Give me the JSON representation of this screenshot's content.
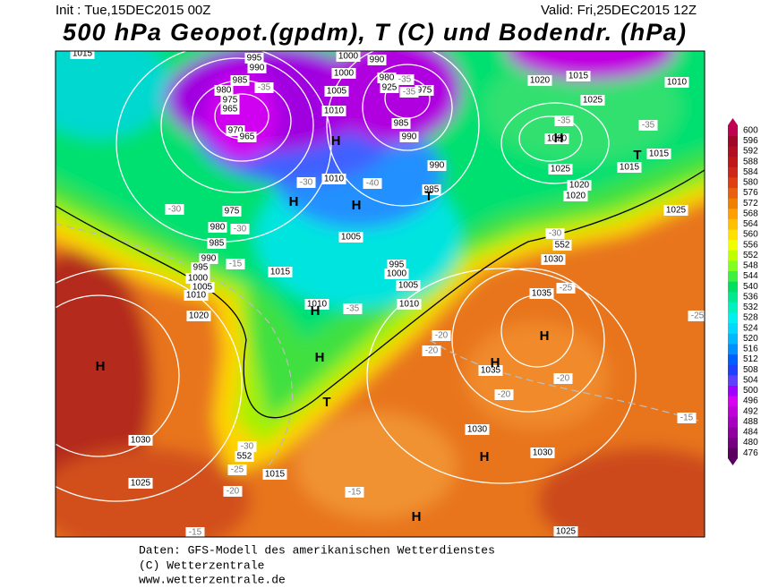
{
  "header": {
    "init": "Init : Tue,15DEC2015 00Z",
    "valid": "Valid: Fri,25DEC2015 12Z",
    "title": "500 hPa Geopot.(gpdm), T (C) und Bodendr. (hPa)"
  },
  "footer": {
    "source": "Daten: GFS-Modell des amerikanischen Wetterdienstes",
    "copyright": "(C) Wetterzentrale",
    "url": "www.wetterzentrale.de"
  },
  "colorbar": {
    "levels": [
      476,
      480,
      484,
      488,
      492,
      496,
      500,
      504,
      508,
      512,
      516,
      520,
      524,
      528,
      532,
      536,
      540,
      544,
      548,
      552,
      556,
      560,
      564,
      568,
      572,
      576,
      580,
      584,
      588,
      592,
      596,
      600
    ],
    "colors": [
      "#5a0060",
      "#780080",
      "#9000a0",
      "#a800c0",
      "#c000d8",
      "#d800f0",
      "#a000ff",
      "#6040ff",
      "#2040ff",
      "#0060ff",
      "#0090ff",
      "#00b8ff",
      "#00d8ff",
      "#00f0f0",
      "#00f0c0",
      "#00e890",
      "#00e060",
      "#40f040",
      "#80ff20",
      "#c0ff00",
      "#f0ff00",
      "#ffe000",
      "#ffc000",
      "#ffa000",
      "#f08000",
      "#e86010",
      "#e04010",
      "#d02818",
      "#c01818",
      "#b01020",
      "#a00828",
      "#c00050"
    ]
  },
  "map": {
    "isobar_labels": [
      1015,
      995,
      990,
      985,
      980,
      975,
      965,
      970,
      965,
      1000,
      1000,
      1005,
      1010,
      990,
      980,
      925,
      975,
      985,
      990,
      990,
      985,
      1010,
      975,
      980,
      985,
      990,
      995,
      1000,
      1005,
      1010,
      1020,
      1015,
      1005,
      995,
      1000,
      1005,
      1010,
      1010,
      1020,
      1015,
      1010,
      1025,
      1020,
      1025,
      1015,
      1015,
      1020,
      1020,
      1025,
      1030,
      1035,
      1035,
      1030,
      1030,
      1030,
      1025,
      1015,
      1025
    ],
    "temperature_labels": [
      -35,
      -35,
      -35,
      -35,
      -35,
      -30,
      -30,
      -30,
      -15,
      -40,
      -35,
      -30,
      -25,
      -20,
      -20,
      -20,
      -20,
      -15,
      -30,
      -25,
      -20,
      -15,
      -15,
      -25
    ],
    "height_labels": [
      552,
      552
    ],
    "pressure_centers": [
      "H",
      "H",
      "T",
      "H",
      "H",
      "T",
      "H",
      "H",
      "T",
      "H",
      "H",
      "H",
      "H",
      "H"
    ]
  }
}
